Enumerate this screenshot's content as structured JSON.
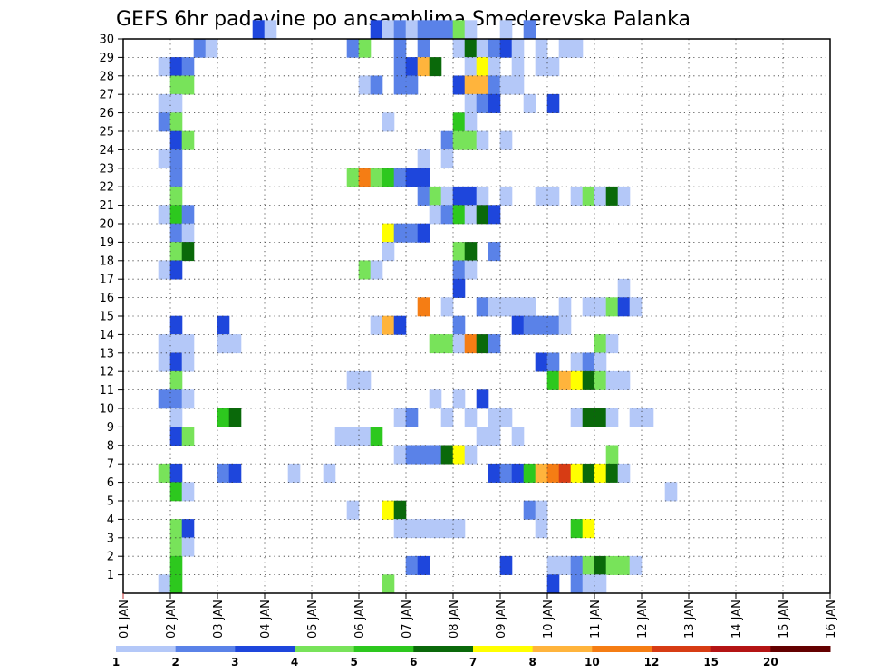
{
  "chart_data": {
    "type": "heatmap",
    "title": "GEFS 6hr padavine po ansamblima Smederevska Palanka",
    "x_tick_labels": [
      "01 JAN",
      "02 JAN",
      "03 JAN",
      "04 JAN",
      "05 JAN",
      "06 JAN",
      "07 JAN",
      "08 JAN",
      "09 JAN",
      "10 JAN",
      "11 JAN",
      "12 JAN",
      "13 JAN",
      "14 JAN",
      "15 JAN",
      "16 JAN"
    ],
    "y_tick_labels": [
      "1",
      "2",
      "3",
      "4",
      "5",
      "6",
      "7",
      "8",
      "9",
      "10",
      "11",
      "12",
      "13",
      "14",
      "15",
      "16",
      "17",
      "18",
      "19",
      "20",
      "21",
      "22",
      "23",
      "24",
      "25",
      "26",
      "27",
      "28",
      "29",
      "30"
    ],
    "xlim_days": [
      0,
      15
    ],
    "ylim_members": [
      0,
      30
    ],
    "grid": true,
    "legend_position": "bottom",
    "colorbar": {
      "levels": [
        "1",
        "2",
        "3",
        "4",
        "5",
        "6",
        "7",
        "8",
        "10",
        "12",
        "15",
        "20"
      ],
      "colors": [
        "#b4c8f8",
        "#5a82e8",
        "#1e46dc",
        "#78e35a",
        "#2dc81e",
        "#0a690a",
        "#ffff00",
        "#ffb43c",
        "#f57d14",
        "#d73c14",
        "#b41414",
        "#640000"
      ]
    },
    "cells": [
      {
        "m": 30,
        "s": [
          [
            11,
            2
          ],
          [
            12,
            0
          ],
          [
            21,
            2
          ],
          [
            22,
            0
          ],
          [
            23,
            1
          ],
          [
            24,
            0
          ],
          [
            25,
            1
          ],
          [
            26,
            1
          ],
          [
            27,
            1
          ],
          [
            28,
            3
          ],
          [
            29,
            0
          ],
          [
            32,
            0
          ],
          [
            34,
            1
          ]
        ]
      },
      {
        "m": 29,
        "s": [
          [
            6,
            1
          ],
          [
            7,
            0
          ],
          [
            19,
            1
          ],
          [
            20,
            3
          ],
          [
            23,
            1
          ],
          [
            25,
            1
          ],
          [
            28,
            0
          ],
          [
            29,
            5
          ],
          [
            30,
            0
          ],
          [
            31,
            1
          ],
          [
            32,
            2
          ],
          [
            33,
            0
          ],
          [
            35,
            0
          ],
          [
            37,
            0
          ],
          [
            38,
            0
          ]
        ]
      },
      {
        "m": 28,
        "s": [
          [
            3,
            0
          ],
          [
            4,
            2
          ],
          [
            5,
            1
          ],
          [
            23,
            1
          ],
          [
            24,
            2
          ],
          [
            25,
            7
          ],
          [
            26,
            5
          ],
          [
            29,
            0
          ],
          [
            30,
            6
          ],
          [
            31,
            0
          ],
          [
            33,
            0
          ],
          [
            35,
            0
          ],
          [
            36,
            0
          ]
        ]
      },
      {
        "m": 27,
        "s": [
          [
            4,
            3
          ],
          [
            5,
            3
          ],
          [
            20,
            0
          ],
          [
            21,
            1
          ],
          [
            23,
            1
          ],
          [
            24,
            1
          ],
          [
            28,
            2
          ],
          [
            29,
            7
          ],
          [
            30,
            7
          ],
          [
            31,
            1
          ],
          [
            32,
            0
          ],
          [
            33,
            0
          ]
        ]
      },
      {
        "m": 26,
        "s": [
          [
            3,
            0
          ],
          [
            4,
            0
          ],
          [
            29,
            0
          ],
          [
            30,
            1
          ],
          [
            31,
            2
          ],
          [
            34,
            0
          ],
          [
            36,
            2
          ]
        ]
      },
      {
        "m": 25,
        "s": [
          [
            3,
            1
          ],
          [
            4,
            3
          ],
          [
            22,
            0
          ],
          [
            28,
            4
          ],
          [
            29,
            0
          ]
        ]
      },
      {
        "m": 24,
        "s": [
          [
            4,
            2
          ],
          [
            5,
            3
          ],
          [
            27,
            1
          ],
          [
            28,
            3
          ],
          [
            29,
            3
          ],
          [
            30,
            0
          ],
          [
            32,
            0
          ]
        ]
      },
      {
        "m": 23,
        "s": [
          [
            3,
            0
          ],
          [
            4,
            1
          ],
          [
            25,
            0
          ],
          [
            27,
            0
          ]
        ]
      },
      {
        "m": 22,
        "s": [
          [
            4,
            1
          ],
          [
            19,
            3
          ],
          [
            20,
            8
          ],
          [
            21,
            3
          ],
          [
            22,
            4
          ],
          [
            23,
            1
          ],
          [
            24,
            2
          ],
          [
            25,
            2
          ]
        ]
      },
      {
        "m": 21,
        "s": [
          [
            4,
            3
          ],
          [
            25,
            1
          ],
          [
            26,
            3
          ],
          [
            27,
            0
          ],
          [
            28,
            2
          ],
          [
            29,
            2
          ],
          [
            30,
            0
          ],
          [
            32,
            0
          ],
          [
            35,
            0
          ],
          [
            36,
            0
          ],
          [
            38,
            0
          ],
          [
            39,
            3
          ],
          [
            40,
            0
          ],
          [
            41,
            5
          ],
          [
            42,
            0
          ]
        ]
      },
      {
        "m": 20,
        "s": [
          [
            3,
            0
          ],
          [
            4,
            4
          ],
          [
            5,
            1
          ],
          [
            26,
            0
          ],
          [
            27,
            1
          ],
          [
            28,
            4
          ],
          [
            29,
            0
          ],
          [
            30,
            5
          ],
          [
            31,
            2
          ]
        ]
      },
      {
        "m": 19,
        "s": [
          [
            4,
            1
          ],
          [
            5,
            0
          ],
          [
            22,
            6
          ],
          [
            23,
            1
          ],
          [
            24,
            1
          ],
          [
            25,
            2
          ]
        ]
      },
      {
        "m": 18,
        "s": [
          [
            4,
            3
          ],
          [
            5,
            5
          ],
          [
            22,
            0
          ],
          [
            28,
            3
          ],
          [
            29,
            5
          ],
          [
            31,
            1
          ]
        ]
      },
      {
        "m": 17,
        "s": [
          [
            3,
            0
          ],
          [
            4,
            2
          ],
          [
            20,
            3
          ],
          [
            21,
            0
          ],
          [
            28,
            1
          ],
          [
            29,
            0
          ]
        ]
      },
      {
        "m": 16,
        "s": [
          [
            28,
            2
          ],
          [
            42,
            0
          ]
        ]
      },
      {
        "m": 15,
        "s": [
          [
            25,
            8
          ],
          [
            27,
            0
          ],
          [
            30,
            1
          ],
          [
            31,
            0
          ],
          [
            32,
            0
          ],
          [
            33,
            0
          ],
          [
            34,
            0
          ],
          [
            37,
            0
          ],
          [
            39,
            0
          ],
          [
            40,
            0
          ],
          [
            41,
            3
          ],
          [
            42,
            2
          ],
          [
            43,
            0
          ]
        ]
      },
      {
        "m": 14,
        "s": [
          [
            4,
            2
          ],
          [
            8,
            2
          ],
          [
            21,
            0
          ],
          [
            22,
            7
          ],
          [
            23,
            2
          ],
          [
            28,
            1
          ],
          [
            33,
            2
          ],
          [
            34,
            1
          ],
          [
            35,
            1
          ],
          [
            36,
            1
          ],
          [
            37,
            0
          ]
        ]
      },
      {
        "m": 13,
        "s": [
          [
            3,
            0
          ],
          [
            4,
            0
          ],
          [
            5,
            0
          ],
          [
            8,
            0
          ],
          [
            9,
            0
          ],
          [
            26,
            3
          ],
          [
            27,
            3
          ],
          [
            28,
            0
          ],
          [
            29,
            8
          ],
          [
            30,
            5
          ],
          [
            31,
            1
          ],
          [
            40,
            3
          ],
          [
            41,
            0
          ]
        ]
      },
      {
        "m": 12,
        "s": [
          [
            3,
            0
          ],
          [
            4,
            2
          ],
          [
            5,
            0
          ],
          [
            35,
            2
          ],
          [
            36,
            1
          ],
          [
            38,
            0
          ],
          [
            39,
            1
          ],
          [
            40,
            0
          ]
        ]
      },
      {
        "m": 11,
        "s": [
          [
            4,
            3
          ],
          [
            19,
            0
          ],
          [
            20,
            0
          ],
          [
            36,
            4
          ],
          [
            37,
            7
          ],
          [
            38,
            6
          ],
          [
            39,
            5
          ],
          [
            40,
            3
          ],
          [
            41,
            0
          ],
          [
            42,
            0
          ]
        ]
      },
      {
        "m": 10,
        "s": [
          [
            3,
            1
          ],
          [
            4,
            1
          ],
          [
            5,
            0
          ],
          [
            26,
            0
          ],
          [
            28,
            0
          ],
          [
            30,
            2
          ]
        ]
      },
      {
        "m": 9,
        "s": [
          [
            4,
            0
          ],
          [
            8,
            4
          ],
          [
            9,
            5
          ],
          [
            23,
            0
          ],
          [
            24,
            1
          ],
          [
            27,
            0
          ],
          [
            29,
            0
          ],
          [
            31,
            0
          ],
          [
            32,
            0
          ],
          [
            38,
            0
          ],
          [
            39,
            5
          ],
          [
            40,
            5
          ],
          [
            41,
            0
          ],
          [
            43,
            0
          ],
          [
            44,
            0
          ]
        ]
      },
      {
        "m": 8,
        "s": [
          [
            4,
            2
          ],
          [
            5,
            3
          ],
          [
            18,
            0
          ],
          [
            19,
            0
          ],
          [
            20,
            0
          ],
          [
            21,
            4
          ],
          [
            30,
            0
          ],
          [
            31,
            0
          ],
          [
            33,
            0
          ]
        ]
      },
      {
        "m": 7,
        "s": [
          [
            23,
            0
          ],
          [
            24,
            1
          ],
          [
            25,
            1
          ],
          [
            26,
            1
          ],
          [
            27,
            5
          ],
          [
            28,
            6
          ],
          [
            29,
            0
          ],
          [
            41,
            3
          ]
        ]
      },
      {
        "m": 6,
        "s": [
          [
            3,
            3
          ],
          [
            4,
            2
          ],
          [
            8,
            1
          ],
          [
            9,
            2
          ],
          [
            14,
            0
          ],
          [
            17,
            0
          ],
          [
            31,
            2
          ],
          [
            32,
            1
          ],
          [
            33,
            2
          ],
          [
            34,
            4
          ],
          [
            35,
            7
          ],
          [
            36,
            8
          ],
          [
            37,
            9
          ],
          [
            38,
            6
          ],
          [
            39,
            5
          ],
          [
            40,
            6
          ],
          [
            41,
            5
          ],
          [
            42,
            0
          ]
        ]
      },
      {
        "m": 5,
        "s": [
          [
            4,
            4
          ],
          [
            5,
            0
          ],
          [
            46,
            0
          ]
        ]
      },
      {
        "m": 4,
        "s": [
          [
            19,
            0
          ],
          [
            22,
            6
          ],
          [
            23,
            5
          ],
          [
            34,
            1
          ],
          [
            35,
            0
          ]
        ]
      },
      {
        "m": 3,
        "s": [
          [
            4,
            3
          ],
          [
            5,
            2
          ],
          [
            23,
            0
          ],
          [
            24,
            0
          ],
          [
            25,
            0
          ],
          [
            26,
            0
          ],
          [
            27,
            0
          ],
          [
            28,
            0
          ],
          [
            35,
            0
          ],
          [
            38,
            4
          ],
          [
            39,
            6
          ]
        ]
      },
      {
        "m": 2,
        "s": [
          [
            4,
            3
          ],
          [
            5,
            0
          ]
        ]
      },
      {
        "m": 1,
        "s": [
          [
            4,
            4
          ],
          [
            24,
            1
          ],
          [
            25,
            2
          ],
          [
            32,
            2
          ],
          [
            36,
            0
          ],
          [
            37,
            0
          ],
          [
            38,
            1
          ],
          [
            39,
            3
          ],
          [
            40,
            5
          ],
          [
            41,
            3
          ],
          [
            42,
            3
          ],
          [
            43,
            0
          ]
        ]
      },
      {
        "m": 0,
        "s": [
          [
            3,
            0
          ],
          [
            4,
            4
          ],
          [
            22,
            3
          ],
          [
            36,
            2
          ],
          [
            38,
            1
          ],
          [
            39,
            0
          ],
          [
            40,
            0
          ]
        ]
      }
    ]
  }
}
